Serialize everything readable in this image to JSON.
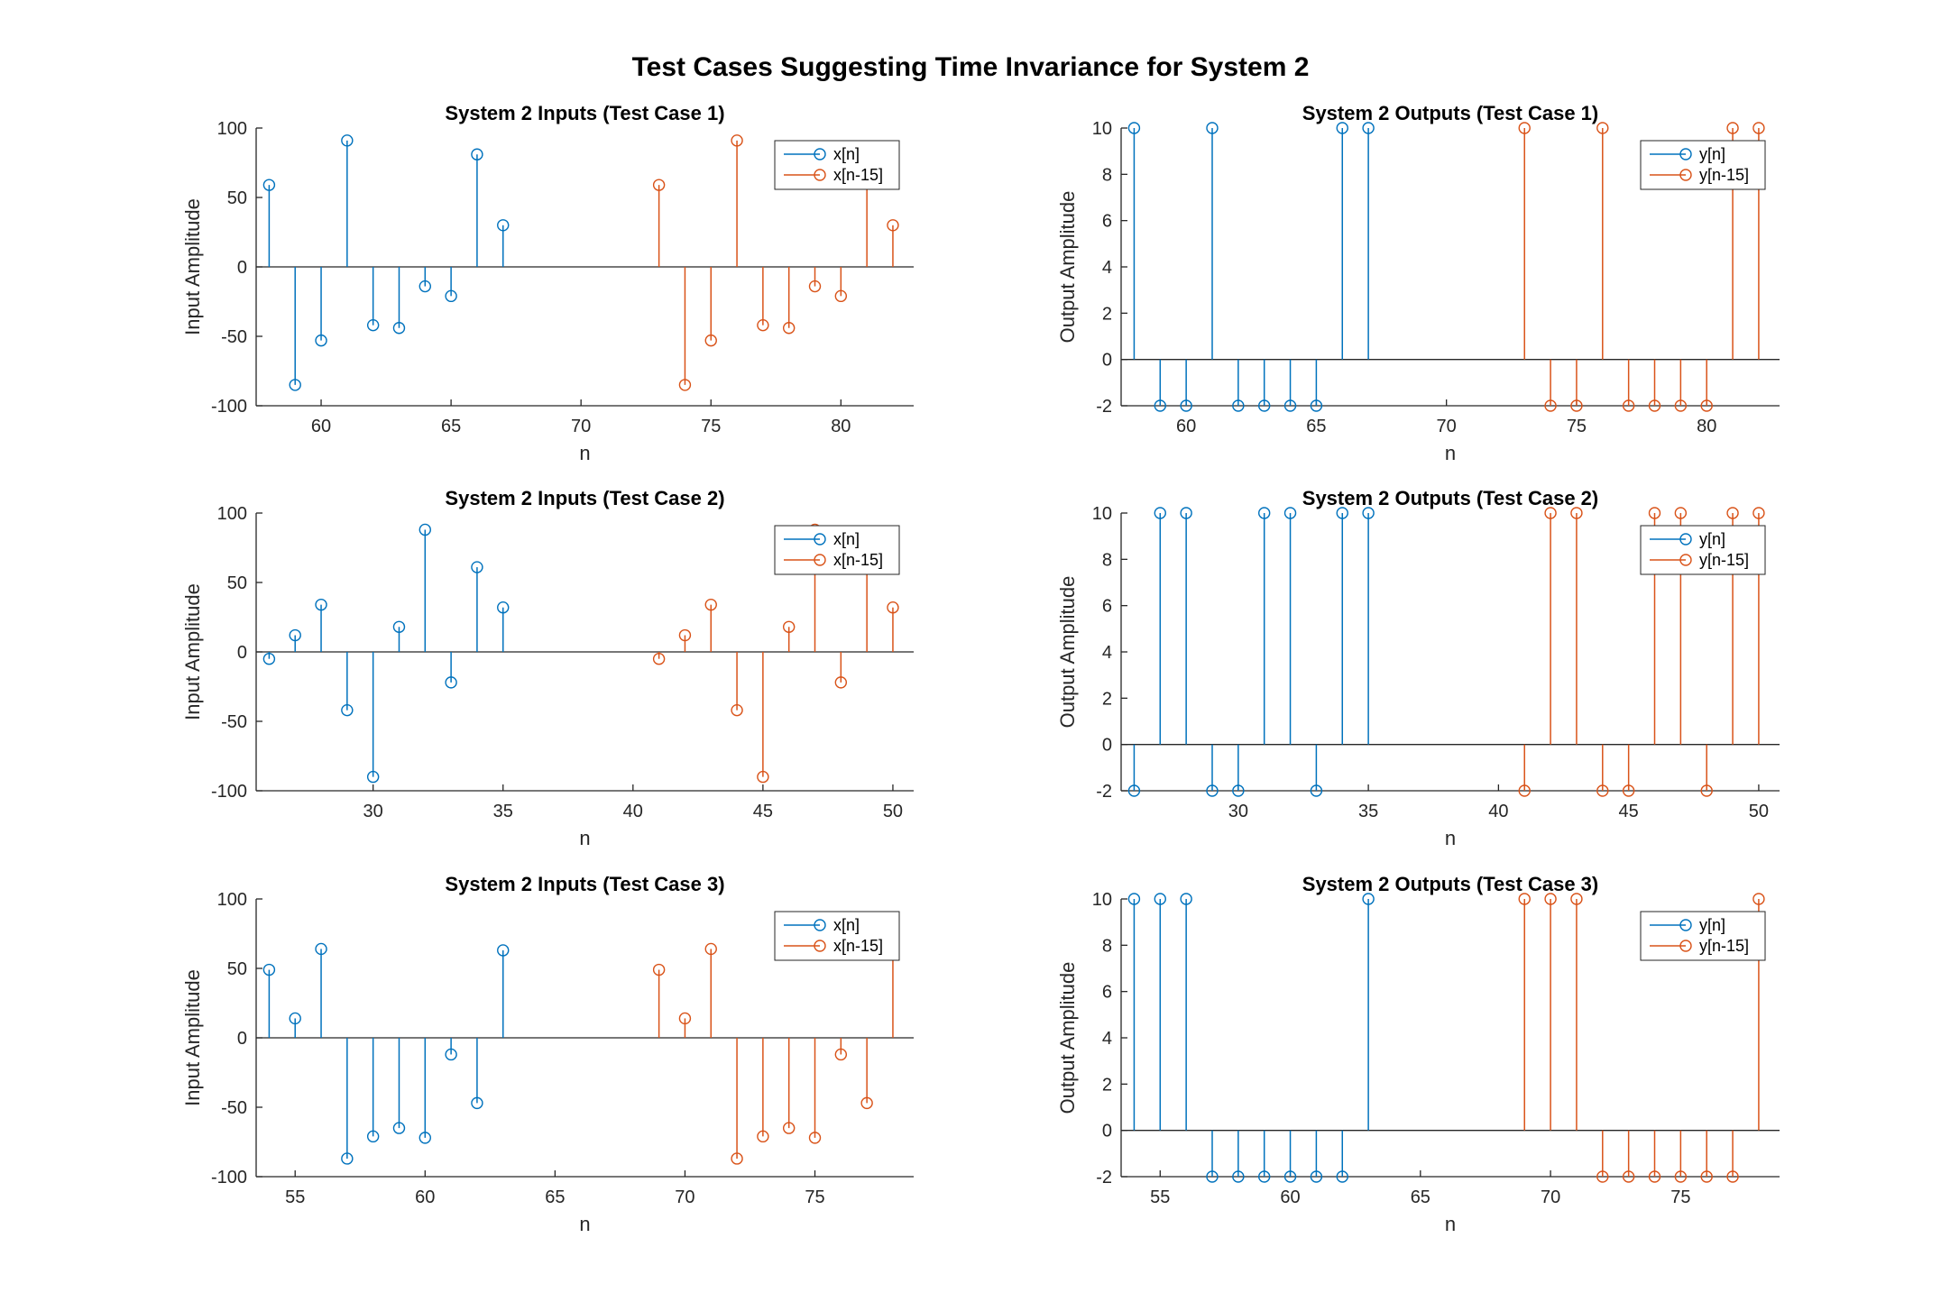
{
  "figure": {
    "title": "Test Cases Suggesting Time Invariance for System 2"
  },
  "colors": {
    "series1": "#0072BD",
    "series2": "#D95319",
    "axis": "#262626",
    "text": "#000000"
  },
  "chart_data": [
    {
      "type": "stem",
      "title": "System 2 Inputs (Test Case 1)",
      "xlabel": "n",
      "ylabel": "Input Amplitude",
      "xlim": [
        57.5,
        82.8
      ],
      "ylim": [
        -100,
        100
      ],
      "xticks": [
        60,
        65,
        70,
        75,
        80
      ],
      "yticks": [
        -100,
        -50,
        0,
        50,
        100
      ],
      "legend_position": "top-right",
      "series": [
        {
          "name": "x[n]",
          "x": [
            58,
            59,
            60,
            61,
            62,
            63,
            64,
            65,
            66,
            67
          ],
          "values": [
            59,
            -85,
            -53,
            91,
            -42,
            -44,
            -14,
            -21,
            81,
            30
          ]
        },
        {
          "name": "x[n-15]",
          "x": [
            73,
            74,
            75,
            76,
            77,
            78,
            79,
            80,
            81,
            82
          ],
          "values": [
            59,
            -85,
            -53,
            91,
            -42,
            -44,
            -14,
            -21,
            81,
            30
          ]
        }
      ]
    },
    {
      "type": "stem",
      "title": "System 2 Outputs (Test Case 1)",
      "xlabel": "n",
      "ylabel": "Output Amplitude",
      "xlim": [
        57.5,
        82.8
      ],
      "ylim": [
        -2,
        10
      ],
      "xticks": [
        60,
        65,
        70,
        75,
        80
      ],
      "yticks": [
        -2,
        0,
        2,
        4,
        6,
        8,
        10
      ],
      "legend_position": "top-right",
      "series": [
        {
          "name": "y[n]",
          "x": [
            58,
            59,
            60,
            61,
            62,
            63,
            64,
            65,
            66,
            67
          ],
          "values": [
            10,
            -2,
            -2,
            10,
            -2,
            -2,
            -2,
            -2,
            10,
            10
          ]
        },
        {
          "name": "y[n-15]",
          "x": [
            73,
            74,
            75,
            76,
            77,
            78,
            79,
            80,
            81,
            82
          ],
          "values": [
            10,
            -2,
            -2,
            10,
            -2,
            -2,
            -2,
            -2,
            10,
            10
          ]
        }
      ]
    },
    {
      "type": "stem",
      "title": "System 2 Inputs (Test Case 2)",
      "xlabel": "n",
      "ylabel": "Input Amplitude",
      "xlim": [
        25.5,
        50.8
      ],
      "ylim": [
        -100,
        100
      ],
      "xticks": [
        30,
        35,
        40,
        45,
        50
      ],
      "yticks": [
        -100,
        -50,
        0,
        50,
        100
      ],
      "legend_position": "top-right",
      "series": [
        {
          "name": "x[n]",
          "x": [
            26,
            27,
            28,
            29,
            30,
            31,
            32,
            33,
            34,
            35
          ],
          "values": [
            -5,
            12,
            34,
            -42,
            -90,
            18,
            88,
            -22,
            61,
            32
          ]
        },
        {
          "name": "x[n-15]",
          "x": [
            41,
            42,
            43,
            44,
            45,
            46,
            47,
            48,
            49,
            50
          ],
          "values": [
            -5,
            12,
            34,
            -42,
            -90,
            18,
            88,
            -22,
            61,
            32
          ]
        }
      ]
    },
    {
      "type": "stem",
      "title": "System 2 Outputs (Test Case 2)",
      "xlabel": "n",
      "ylabel": "Output Amplitude",
      "xlim": [
        25.5,
        50.8
      ],
      "ylim": [
        -2,
        10
      ],
      "xticks": [
        30,
        35,
        40,
        45,
        50
      ],
      "yticks": [
        -2,
        0,
        2,
        4,
        6,
        8,
        10
      ],
      "legend_position": "top-right",
      "series": [
        {
          "name": "y[n]",
          "x": [
            26,
            27,
            28,
            29,
            30,
            31,
            32,
            33,
            34,
            35
          ],
          "values": [
            -2,
            10,
            10,
            -2,
            -2,
            10,
            10,
            -2,
            10,
            10
          ]
        },
        {
          "name": "y[n-15]",
          "x": [
            41,
            42,
            43,
            44,
            45,
            46,
            47,
            48,
            49,
            50
          ],
          "values": [
            -2,
            10,
            10,
            -2,
            -2,
            10,
            10,
            -2,
            10,
            10
          ]
        }
      ]
    },
    {
      "type": "stem",
      "title": "System 2 Inputs (Test Case 3)",
      "xlabel": "n",
      "ylabel": "Input Amplitude",
      "xlim": [
        53.5,
        78.8
      ],
      "ylim": [
        -100,
        100
      ],
      "xticks": [
        55,
        60,
        65,
        70,
        75
      ],
      "yticks": [
        -100,
        -50,
        0,
        50,
        100
      ],
      "legend_position": "top-right",
      "series": [
        {
          "name": "x[n]",
          "x": [
            54,
            55,
            56,
            57,
            58,
            59,
            60,
            61,
            62,
            63
          ],
          "values": [
            49,
            14,
            64,
            -87,
            -71,
            -65,
            -72,
            -12,
            -47,
            63
          ]
        },
        {
          "name": "x[n-15]",
          "x": [
            69,
            70,
            71,
            72,
            73,
            74,
            75,
            76,
            77,
            78
          ],
          "values": [
            49,
            14,
            64,
            -87,
            -71,
            -65,
            -72,
            -12,
            -47,
            63
          ]
        }
      ]
    },
    {
      "type": "stem",
      "title": "System 2 Outputs (Test Case 3)",
      "xlabel": "n",
      "ylabel": "Output Amplitude",
      "xlim": [
        53.5,
        78.8
      ],
      "ylim": [
        -2,
        10
      ],
      "xticks": [
        55,
        60,
        65,
        70,
        75
      ],
      "yticks": [
        -2,
        0,
        2,
        4,
        6,
        8,
        10
      ],
      "legend_position": "top-right",
      "series": [
        {
          "name": "y[n]",
          "x": [
            54,
            55,
            56,
            57,
            58,
            59,
            60,
            61,
            62,
            63
          ],
          "values": [
            10,
            10,
            10,
            -2,
            -2,
            -2,
            -2,
            -2,
            -2,
            10
          ]
        },
        {
          "name": "y[n-15]",
          "x": [
            69,
            70,
            71,
            72,
            73,
            74,
            75,
            76,
            77,
            78
          ],
          "values": [
            10,
            10,
            10,
            -2,
            -2,
            -2,
            -2,
            -2,
            -2,
            10
          ]
        }
      ]
    }
  ]
}
